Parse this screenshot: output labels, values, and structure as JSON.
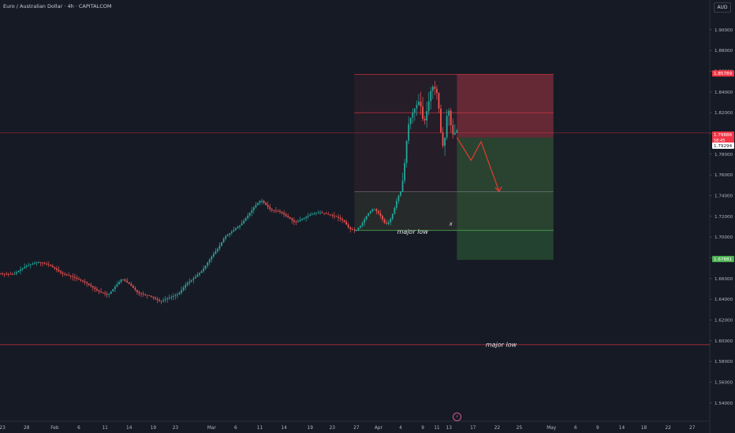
{
  "title": "Euro / Australian Dollar · 4h · CAPITALCOM",
  "currency_button": "AUD",
  "colors": {
    "background": "#161a25",
    "up": "#26a69a",
    "down": "#ef5350",
    "stop_zone": "#b13a45",
    "target_zone": "#2f6a3a",
    "stop_line": "#f23645",
    "target_line": "#4caf50",
    "arrow": "#e8392f"
  },
  "chart_data": {
    "type": "candlestick",
    "symbol": "EURAUD",
    "timeframe": "4h",
    "ylim": [
      1.53,
      1.915
    ],
    "y_ticks": [
      "1.54000",
      "1.56000",
      "1.58000",
      "1.60000",
      "1.62000",
      "1.64000",
      "1.66000",
      "1.68000",
      "1.70000",
      "1.72000",
      "1.74000",
      "1.76000",
      "1.78000",
      "1.80000",
      "1.82000",
      "1.84000",
      "1.86000",
      "1.88000",
      "1.90000"
    ],
    "x_ticks": [
      {
        "label": "23",
        "i": 2
      },
      {
        "label": "28",
        "i": 14
      },
      {
        "label": "Feb",
        "i": 28
      },
      {
        "label": "6",
        "i": 40
      },
      {
        "label": "11",
        "i": 53
      },
      {
        "label": "14",
        "i": 65
      },
      {
        "label": "19",
        "i": 77
      },
      {
        "label": "23",
        "i": 88
      },
      {
        "label": "Mar",
        "i": 106
      },
      {
        "label": "6",
        "i": 118
      },
      {
        "label": "11",
        "i": 130
      },
      {
        "label": "14",
        "i": 142
      },
      {
        "label": "19",
        "i": 155
      },
      {
        "label": "23",
        "i": 166
      },
      {
        "label": "27",
        "i": 178
      },
      {
        "label": "Apr",
        "i": 189
      },
      {
        "label": "4",
        "i": 200
      },
      {
        "label": "9",
        "i": 211
      },
      {
        "label": "11",
        "i": 218
      },
      {
        "label": "13",
        "i": 224
      },
      {
        "label": "17",
        "i": 236
      },
      {
        "label": "22",
        "i": 248
      },
      {
        "label": "25",
        "i": 259
      },
      {
        "label": "May",
        "i": 275
      },
      {
        "label": "6",
        "i": 287
      },
      {
        "label": "9",
        "i": 298
      },
      {
        "label": "14",
        "i": 310
      },
      {
        "label": "18",
        "i": 321
      },
      {
        "label": "22",
        "i": 333
      },
      {
        "label": "27",
        "i": 345
      }
    ],
    "series_path": [
      [
        0,
        1.665
      ],
      [
        8,
        1.664
      ],
      [
        14,
        1.672
      ],
      [
        20,
        1.676
      ],
      [
        26,
        1.673
      ],
      [
        32,
        1.665
      ],
      [
        38,
        1.661
      ],
      [
        44,
        1.656
      ],
      [
        50,
        1.648
      ],
      [
        55,
        1.644
      ],
      [
        58,
        1.651
      ],
      [
        62,
        1.66
      ],
      [
        66,
        1.654
      ],
      [
        70,
        1.646
      ],
      [
        76,
        1.643
      ],
      [
        81,
        1.638
      ],
      [
        86,
        1.642
      ],
      [
        90,
        1.645
      ],
      [
        94,
        1.655
      ],
      [
        98,
        1.661
      ],
      [
        102,
        1.668
      ],
      [
        106,
        1.68
      ],
      [
        110,
        1.69
      ],
      [
        113,
        1.7
      ],
      [
        117,
        1.706
      ],
      [
        121,
        1.712
      ],
      [
        125,
        1.722
      ],
      [
        128,
        1.73
      ],
      [
        131,
        1.736
      ],
      [
        133,
        1.732
      ],
      [
        136,
        1.726
      ],
      [
        140,
        1.725
      ],
      [
        144,
        1.72
      ],
      [
        148,
        1.714
      ],
      [
        152,
        1.718
      ],
      [
        156,
        1.722
      ],
      [
        160,
        1.724
      ],
      [
        164,
        1.722
      ],
      [
        168,
        1.72
      ],
      [
        172,
        1.716
      ],
      [
        175,
        1.708
      ],
      [
        178,
        1.706
      ],
      [
        181,
        1.712
      ],
      [
        184,
        1.722
      ],
      [
        187,
        1.728
      ],
      [
        190,
        1.722
      ],
      [
        193,
        1.712
      ],
      [
        195,
        1.715
      ],
      [
        197,
        1.725
      ],
      [
        199,
        1.738
      ],
      [
        201,
        1.746
      ],
      [
        203,
        1.78
      ],
      [
        204,
        1.806
      ],
      [
        206,
        1.818
      ],
      [
        208,
        1.826
      ],
      [
        210,
        1.832
      ],
      [
        212,
        1.808
      ],
      [
        214,
        1.826
      ],
      [
        216,
        1.846
      ],
      [
        218,
        1.842
      ],
      [
        219,
        1.836
      ],
      [
        220,
        1.812
      ],
      [
        221,
        1.79
      ],
      [
        222,
        1.786
      ],
      [
        223,
        1.806
      ],
      [
        224,
        1.828
      ],
      [
        225,
        1.816
      ],
      [
        226,
        1.8
      ],
      [
        227,
        1.798
      ],
      [
        228,
        1.803
      ]
    ],
    "price_labels": [
      {
        "value": 1.85789,
        "text": "1.85789",
        "type": "stop"
      },
      {
        "value": 1.79886,
        "text": "1.79886",
        "type": "price"
      },
      {
        "value": 1.79294,
        "text": "1.79294",
        "type": "current"
      },
      {
        "value": 1.67881,
        "text": "1.67881",
        "type": "target"
      }
    ],
    "price_countdown": "58:45",
    "levels": [
      {
        "value": 1.8569,
        "kind": "stop",
        "from": 177,
        "to": 276
      },
      {
        "value": 1.82,
        "kind": "stop",
        "from": 177,
        "to": 276
      },
      {
        "value": 1.8005,
        "kind": "current",
        "from": 0,
        "to": 364
      },
      {
        "value": 1.7436,
        "kind": "entry",
        "from": 177,
        "to": 276
      },
      {
        "value": 1.7064,
        "kind": "major",
        "from": 177,
        "to": 276
      },
      {
        "value": 1.5962,
        "kind": "major",
        "from": 0,
        "to": 364
      }
    ],
    "zones": [
      {
        "kind": "stop_soft",
        "x0": 177,
        "x1": 276,
        "y_top": 1.8569,
        "y_bottom": 1.7064
      },
      {
        "kind": "stop",
        "x0": 228,
        "x1": 276,
        "y_top": 1.8569,
        "y_bottom": 1.796
      },
      {
        "kind": "target",
        "x0": 228,
        "x1": 276,
        "y_top": 1.796,
        "y_bottom": 1.678
      }
    ],
    "projection": [
      [
        228,
        1.796
      ],
      [
        235,
        1.774
      ],
      [
        240,
        1.792
      ],
      [
        249,
        1.744
      ]
    ],
    "annotations": [
      {
        "text": "major low",
        "i": 206,
        "y": 1.703
      },
      {
        "text": "x",
        "i": 225,
        "y": 1.711
      },
      {
        "text": "major low",
        "i": 250,
        "y": 1.594
      }
    ]
  }
}
